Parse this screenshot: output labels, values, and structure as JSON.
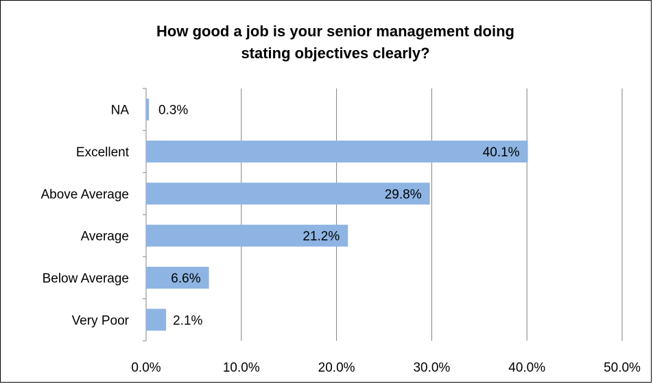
{
  "chart_data": {
    "type": "bar",
    "orientation": "horizontal",
    "title": "How good a job is your senior management doing stating objectives clearly?",
    "title_lines": [
      "How good a  job is your senior management doing",
      "stating objectives clearly?"
    ],
    "categories": [
      "NA",
      "Excellent",
      "Above Average",
      "Average",
      "Below Average",
      "Very Poor"
    ],
    "values": [
      0.3,
      40.1,
      29.8,
      21.2,
      6.6,
      2.1
    ],
    "data_labels": [
      "0.3%",
      "40.1%",
      "29.8%",
      "21.2%",
      "6.6%",
      "2.1%"
    ],
    "xlim": [
      0,
      50
    ],
    "x_ticks": [
      0,
      10,
      20,
      30,
      40,
      50
    ],
    "x_tick_labels": [
      "0.0%",
      "10.0%",
      "20.0%",
      "30.0%",
      "40.0%",
      "50.0%"
    ],
    "xlabel": "",
    "ylabel": "",
    "grid": "vertical",
    "legend": "none",
    "bar_color": "#8EB4E3",
    "grid_color": "#808080"
  }
}
